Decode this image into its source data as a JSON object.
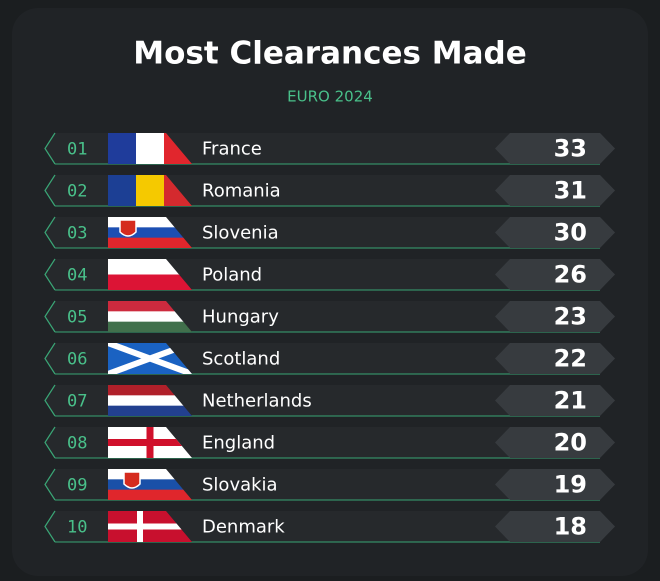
{
  "header": {
    "title": "Most Clearances Made",
    "subtitle": "EURO 2024"
  },
  "rows": [
    {
      "rank": "01",
      "country": "France",
      "value": 33
    },
    {
      "rank": "02",
      "country": "Romania",
      "value": 31
    },
    {
      "rank": "03",
      "country": "Slovenia",
      "value": 30
    },
    {
      "rank": "04",
      "country": "Poland",
      "value": 26
    },
    {
      "rank": "05",
      "country": "Hungary",
      "value": 23
    },
    {
      "rank": "06",
      "country": "Scotland",
      "value": 22
    },
    {
      "rank": "07",
      "country": "Netherlands",
      "value": 21
    },
    {
      "rank": "08",
      "country": "England",
      "value": 20
    },
    {
      "rank": "09",
      "country": "Slovakia",
      "value": 19
    },
    {
      "rank": "10",
      "country": "Denmark",
      "value": 18
    }
  ]
}
